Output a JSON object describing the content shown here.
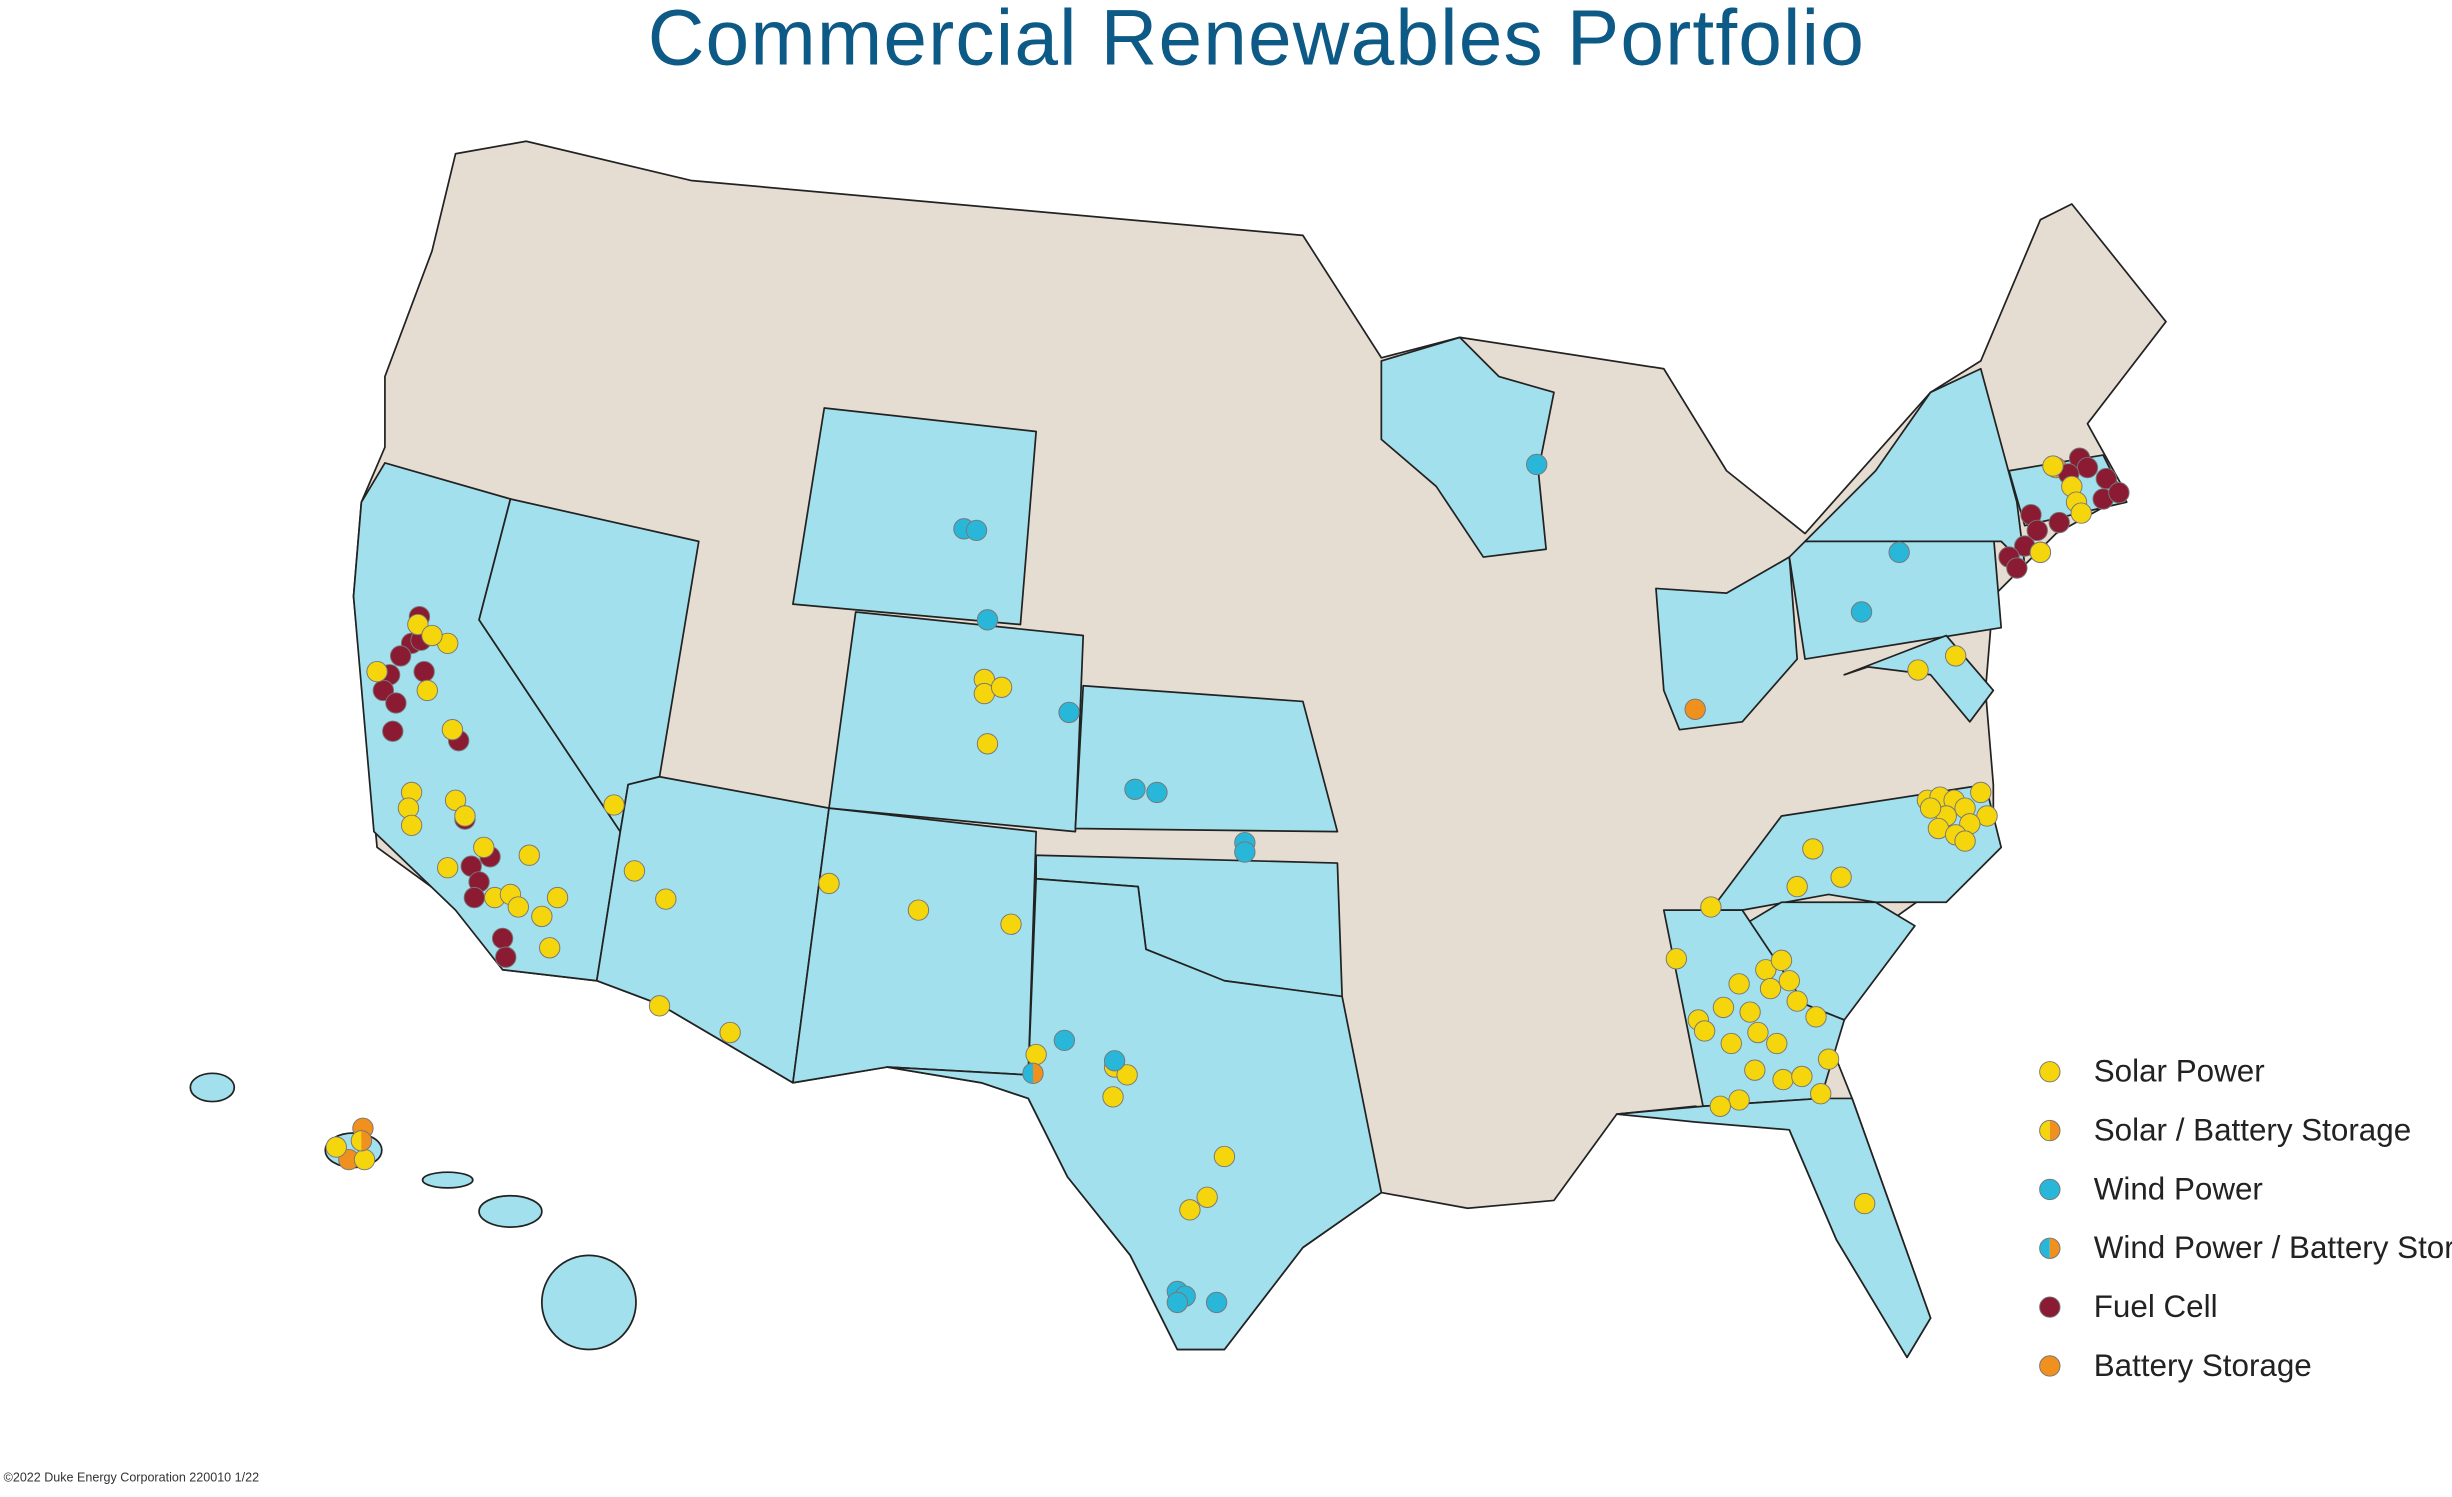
{
  "title": "Commercial Renewables Portfolio",
  "legend": [
    {
      "label": "Solar Power",
      "colors": [
        "#f5d50c"
      ]
    },
    {
      "label": "Solar / Battery Storage",
      "colors": [
        "#f5d50c",
        "#f0901e"
      ]
    },
    {
      "label": "Wind Power",
      "colors": [
        "#29b7d9"
      ]
    },
    {
      "label": "Wind Power / Battery Storage",
      "colors": [
        "#29b7d9",
        "#f0901e"
      ]
    },
    {
      "label": "Fuel Cell",
      "colors": [
        "#8b1a33"
      ]
    },
    {
      "label": "Battery Storage",
      "colors": [
        "#f0901e"
      ]
    }
  ],
  "land_color": "#e6ddd2",
  "portfolio_state_color": "#a1e0ec",
  "footer": "©2022 Duke Energy Corporation  220010  1/22"
}
